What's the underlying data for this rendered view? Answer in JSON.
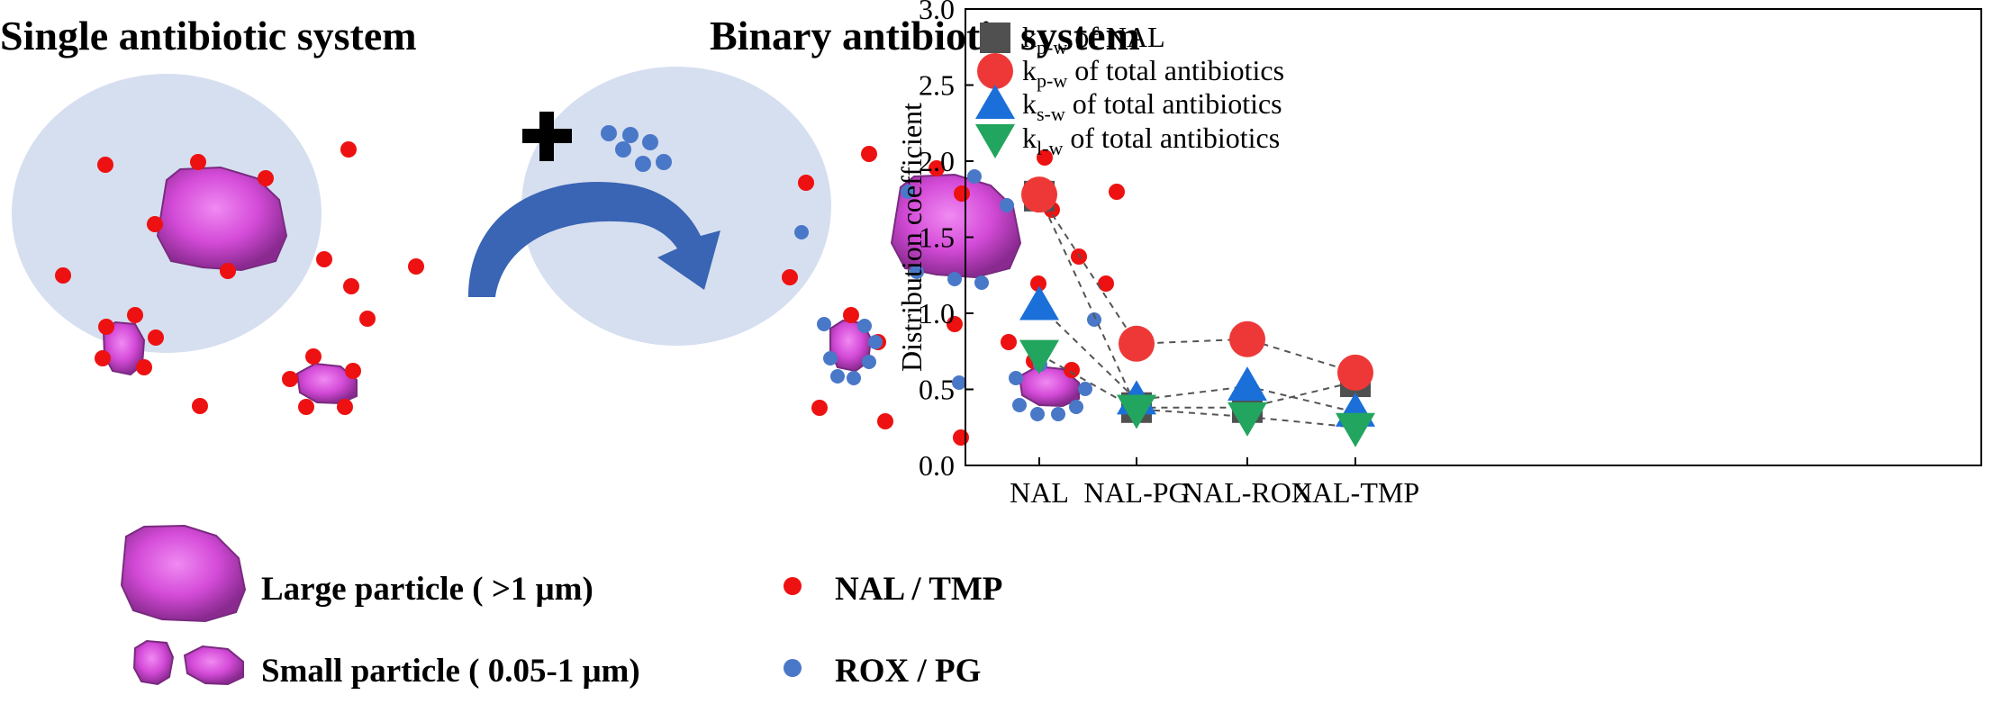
{
  "schematic": {
    "single_title": "Single antibiotic system",
    "binary_title": "Binary antibiotic system",
    "legend": {
      "large_particle": "Large particle ( >1 μm)",
      "small_particle": "Small particle ( 0.05-1 μm)",
      "nal_tmp": "NAL / TMP",
      "rox_pg": "ROX / PG"
    },
    "colors": {
      "circle_fill": "#d6dff0",
      "red_dot": "#ee1111",
      "blue_dot": "#4a78c8",
      "particle": "#d44bd8",
      "arrow": "#3a64b4"
    }
  },
  "chart_data": {
    "type": "scatter",
    "categories": [
      "NAL",
      "NAL-PG",
      "NAL-ROX",
      "NAL-TMP"
    ],
    "ylabel": "Distribution coefficient",
    "ylim": [
      0,
      3.0
    ],
    "yticks": [
      "0.0",
      "0.5",
      "1.0",
      "1.5",
      "2.0",
      "2.5",
      "3.0"
    ],
    "legend_position": "top-left",
    "series": [
      {
        "name_main": "k",
        "name_sub": "p-w",
        "name_rest": " of NAL",
        "marker": "square",
        "color": "#505050",
        "values": [
          1.77,
          0.38,
          0.38,
          0.55
        ]
      },
      {
        "name_main": "k",
        "name_sub": "p-w",
        "name_rest": " of total antibiotics",
        "marker": "circle",
        "color": "#ee3838",
        "values": [
          1.78,
          0.8,
          0.83,
          0.61
        ]
      },
      {
        "name_main": "k",
        "name_sub": "s-w",
        "name_rest": " of total antibiotics",
        "marker": "triangle-up",
        "color": "#1a6fd8",
        "values": [
          1.05,
          0.43,
          0.52,
          0.35
        ]
      },
      {
        "name_main": "k",
        "name_sub": "l-w",
        "name_rest": " of total antibiotics",
        "marker": "triangle-down",
        "color": "#22a55e",
        "values": [
          0.73,
          0.37,
          0.32,
          0.25
        ]
      }
    ]
  }
}
